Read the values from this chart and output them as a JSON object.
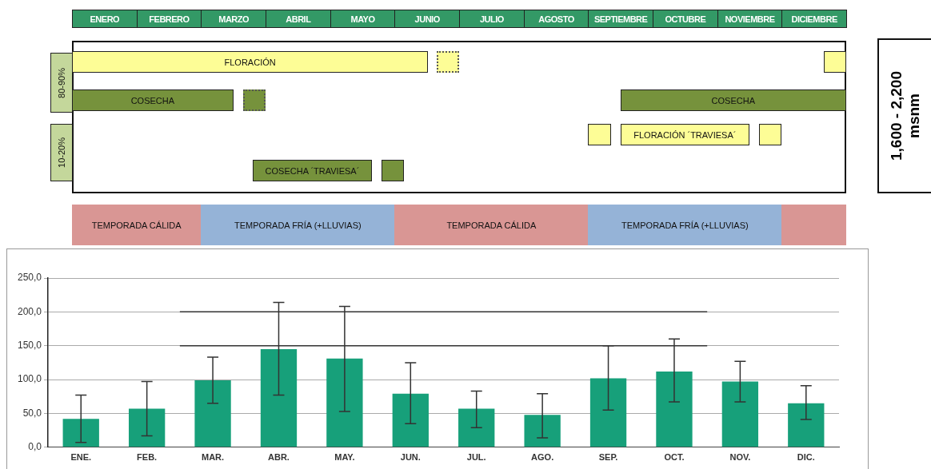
{
  "chart_data": [
    {
      "type": "other",
      "annotations": [
        "ENERO",
        "FEBRERO",
        "MARZO",
        "ABRIL",
        "MAYO",
        "JUNIO",
        "JULIO",
        "AGOSTO",
        "SEPTIEMBRE",
        "OCTUBRE",
        "NOVIEMBRE",
        "DICIEMBRE",
        "FLORACIÓN",
        "COSECHA",
        "COSECHA",
        "FLORACIÓN ´TRAVIESA´",
        "COSECHA ´TRAVIESA´",
        "80-90%",
        "10-20%",
        "TEMPORADA CÁLIDA",
        "TEMPORADA FRÍA (+LLUVIAS)",
        "TEMPORADA CÁLIDA",
        "TEMPORADA FRÍA (+LLUVIAS)",
        "1,600 - 2,200",
        "msnm"
      ]
    },
    {
      "type": "bar",
      "categories": [
        "ENE.",
        "FEB.",
        "MAR.",
        "ABR.",
        "MAY.",
        "JUN.",
        "JUL.",
        "AGO.",
        "SEP.",
        "OCT.",
        "NOV.",
        "DIC."
      ],
      "values": [
        42,
        57,
        99,
        145,
        131,
        79,
        57,
        48,
        102,
        112,
        97,
        65
      ],
      "errors": [
        [
          7,
          77
        ],
        [
          17,
          97
        ],
        [
          65,
          133
        ],
        [
          77,
          214
        ],
        [
          53,
          208
        ],
        [
          35,
          125
        ],
        [
          29,
          83
        ],
        [
          14,
          79
        ],
        [
          55,
          150
        ],
        [
          67,
          160
        ],
        [
          67,
          127
        ],
        [
          41,
          91
        ]
      ],
      "color": "#17a07a",
      "ylim": [
        0,
        250
      ],
      "yticks": [
        {
          "value": 0,
          "label": "0,0"
        },
        {
          "value": 50,
          "label": "50,0"
        },
        {
          "value": 100,
          "label": "100,0"
        },
        {
          "value": 150,
          "label": "150,0"
        },
        {
          "value": 200,
          "label": "200,0"
        },
        {
          "value": 250,
          "label": "250,0"
        }
      ],
      "grid": "y",
      "ref_lines": [
        {
          "axis": "y",
          "value": 150,
          "color": "#333333"
        },
        {
          "axis": "y",
          "value": 200,
          "color": "#333333"
        }
      ]
    }
  ]
}
